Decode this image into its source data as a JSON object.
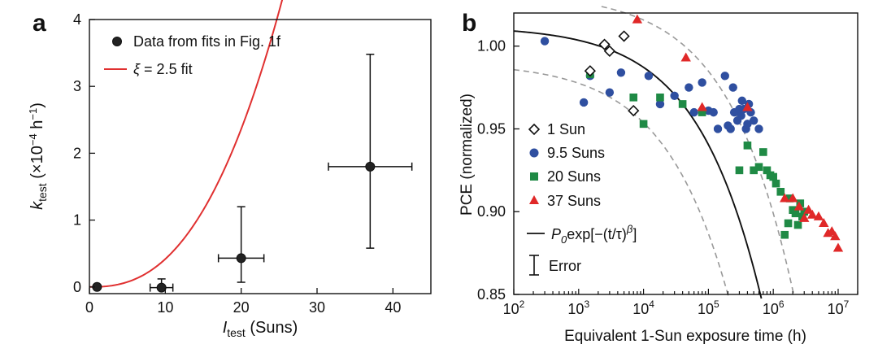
{
  "colors": {
    "fit_a": "#e03030",
    "blue": "#2f4fa0",
    "green": "#1f8a45",
    "red": "#e02828",
    "axis": "#111111",
    "dashed": "#999999"
  },
  "chart_data": [
    {
      "type": "scatter",
      "panel_label": "a",
      "xlabel_main": "I",
      "xlabel_sub": "test",
      "xlabel_rest": " (Suns)",
      "ylabel_main": "k",
      "ylabel_sub": "test",
      "ylabel_unit_open": " (×10",
      "ylabel_unit_exp1": "−4",
      "ylabel_unit_mid": " h",
      "ylabel_unit_exp2": "−1",
      "ylabel_unit_close": ")",
      "xlim": [
        0,
        45
      ],
      "ylim": [
        -0.1,
        4
      ],
      "xticks": [
        0,
        10,
        20,
        30,
        40
      ],
      "xtick_labels": [
        "0",
        "10",
        "20",
        "30",
        "40"
      ],
      "yticks": [
        0,
        1,
        2,
        3,
        4
      ],
      "ytick_labels": [
        "0",
        "1",
        "2",
        "3",
        "4"
      ],
      "legend": {
        "placement": "top-left",
        "data_label": "Data from fits in Fig. 1f",
        "fit_symbol": "ξ",
        "fit_label": " = 2.5 fit"
      },
      "series": [
        {
          "kind": "points",
          "x": [
            1,
            9.5,
            20,
            37
          ],
          "y": [
            0.0,
            -0.01,
            0.43,
            1.8
          ],
          "xerr": [
            0.3,
            1.5,
            3,
            5.5
          ],
          "yerr_low": [
            0.02,
            0.02,
            0.36,
            1.22
          ],
          "yerr_high": [
            0.02,
            0.13,
            0.77,
            1.68
          ]
        },
        {
          "kind": "fit",
          "xi": 2.5,
          "coef": 0.00132
        }
      ]
    },
    {
      "type": "scatter",
      "panel_label": "b",
      "xlabel": "Equivalent 1-Sun exposure time (h)",
      "ylabel": "PCE (normalized)",
      "xscale": "log",
      "xlim": [
        100,
        20000000
      ],
      "ylim": [
        0.85,
        1.02
      ],
      "xticks": [
        100,
        1000,
        10000,
        100000,
        1000000,
        10000000
      ],
      "xtick_labels": [
        {
          "base": "10",
          "exp": "2"
        },
        {
          "base": "10",
          "exp": "3"
        },
        {
          "base": "10",
          "exp": "4"
        },
        {
          "base": "10",
          "exp": "5"
        },
        {
          "base": "10",
          "exp": "6"
        },
        {
          "base": "10",
          "exp": "7"
        }
      ],
      "yticks": [
        0.85,
        0.9,
        0.95,
        1.0
      ],
      "ytick_labels": [
        "0.85",
        "0.90",
        "0.95",
        "1.00"
      ],
      "legend": {
        "placement": "bottom-left",
        "items": [
          {
            "label": "1 Sun",
            "marker": "diamond-open"
          },
          {
            "label": "9.5 Suns",
            "marker": "circle",
            "color": "#2f4fa0"
          },
          {
            "label": "20 Suns",
            "marker": "square",
            "color": "#1f8a45"
          },
          {
            "label": "37 Suns",
            "marker": "triangle",
            "color": "#e02828"
          }
        ],
        "fit_prefix": "P",
        "fit_sub": "0",
        "fit_mid": "exp[−(t/τ)",
        "fit_exp": "β",
        "fit_close": "]",
        "error_label": "Error"
      },
      "fit": {
        "tau": 26000000,
        "beta": 0.47
      },
      "series": [
        {
          "name": "1 Sun",
          "x": [
            1500,
            2500,
            3000,
            5000,
            7000
          ],
          "y": [
            0.985,
            1.001,
            0.997,
            1.006,
            0.961
          ]
        },
        {
          "name": "9.5 Suns",
          "x": [
            300,
            1200,
            1500,
            3000,
            4500,
            12000,
            18000,
            30000,
            50000,
            60000,
            80000,
            100000,
            120000,
            140000,
            180000,
            200000,
            220000,
            240000,
            250000,
            280000,
            300000,
            320000,
            330000,
            350000,
            380000,
            400000,
            420000,
            450000,
            500000,
            600000
          ],
          "y": [
            1.003,
            0.966,
            0.982,
            0.972,
            0.984,
            0.982,
            0.965,
            0.97,
            0.975,
            0.96,
            0.978,
            0.961,
            0.96,
            0.95,
            0.982,
            0.952,
            0.95,
            0.975,
            0.96,
            0.955,
            0.962,
            0.958,
            0.967,
            0.962,
            0.95,
            0.953,
            0.965,
            0.96,
            0.955,
            0.95
          ]
        },
        {
          "name": "20 Suns",
          "x": [
            1500,
            7000,
            10000,
            18000,
            40000,
            80000,
            300000,
            400000,
            500000,
            600000,
            700000,
            800000,
            900000,
            1000000,
            1100000,
            1300000,
            1500000,
            1700000,
            1800000,
            2000000,
            2200000,
            2400000,
            2600000,
            2800000,
            3000000
          ],
          "y": [
            0.983,
            0.969,
            0.953,
            0.969,
            0.965,
            0.96,
            0.925,
            0.94,
            0.925,
            0.927,
            0.936,
            0.925,
            0.922,
            0.921,
            0.917,
            0.912,
            0.886,
            0.893,
            0.908,
            0.901,
            0.899,
            0.892,
            0.905,
            0.897,
            0.9
          ]
        },
        {
          "name": "37 Suns",
          "x": [
            8000,
            45000,
            80000,
            400000,
            1500000,
            2000000,
            2500000,
            3000000,
            3500000,
            4000000,
            5000000,
            6000000,
            7000000,
            8000000,
            9000000,
            10000000
          ],
          "y": [
            1.016,
            0.993,
            0.963,
            0.963,
            0.908,
            0.908,
            0.903,
            0.896,
            0.901,
            0.898,
            0.897,
            0.893,
            0.887,
            0.888,
            0.885,
            0.878
          ]
        }
      ]
    }
  ]
}
